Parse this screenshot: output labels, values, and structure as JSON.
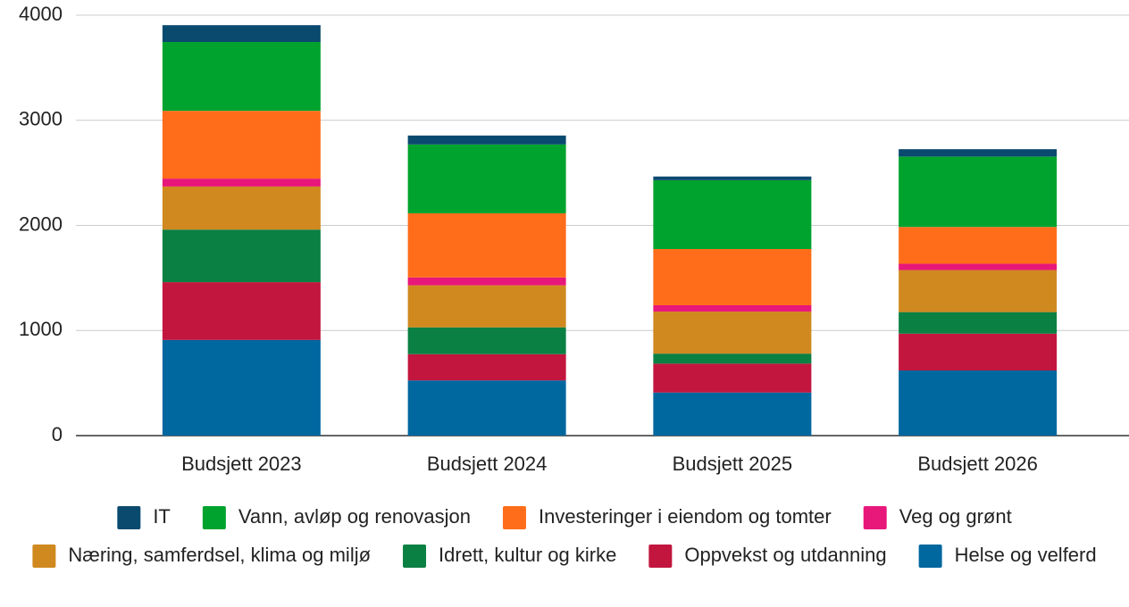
{
  "chart_data": {
    "type": "stacked_bar",
    "categories": [
      "Budsjett 2023",
      "Budsjett 2024",
      "Budsjett 2025",
      "Budsjett 2026"
    ],
    "series": [
      {
        "name": "IT",
        "color": "#0b4a6f",
        "values": [
          160,
          85,
          35,
          70
        ]
      },
      {
        "name": "Vann, avløp og renovasjon",
        "color": "#00a32e",
        "values": [
          655,
          655,
          655,
          670
        ]
      },
      {
        "name": "Investeringer i eiendom og tomter",
        "color": "#ff6d1a",
        "values": [
          645,
          610,
          535,
          350
        ]
      },
      {
        "name": "Veg og grønt",
        "color": "#e8177a",
        "values": [
          75,
          75,
          60,
          60
        ]
      },
      {
        "name": "Næring, samferdsel, klima og miljø",
        "color": "#d0891f",
        "values": [
          410,
          400,
          400,
          400
        ]
      },
      {
        "name": "Idrett, kultur og kirke",
        "color": "#0b8043",
        "values": [
          500,
          255,
          95,
          205
        ]
      },
      {
        "name": "Oppvekst og utdanning",
        "color": "#c2163f",
        "values": [
          550,
          250,
          275,
          350
        ]
      },
      {
        "name": "Helse og velferd",
        "color": "#00679f",
        "values": [
          910,
          525,
          410,
          620
        ]
      }
    ],
    "ylim": [
      0,
      4000
    ],
    "yticks": [
      0,
      1000,
      2000,
      3000,
      4000
    ],
    "grid": true,
    "legend": "bottom"
  }
}
